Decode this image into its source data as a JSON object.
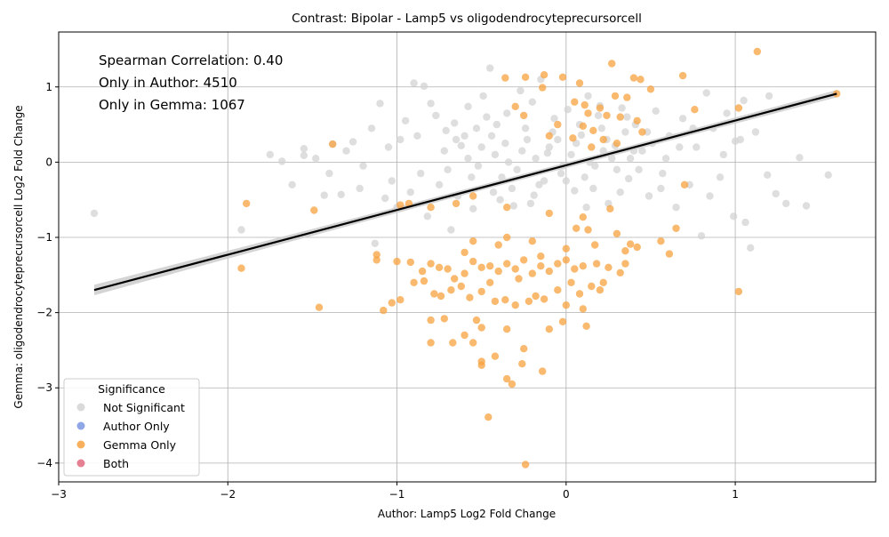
{
  "chart_data": {
    "type": "scatter",
    "title": "Contrast: Bipolar - Lamp5 vs oligodendrocyteprecursorcell",
    "xlabel": "Author: Lamp5 Log2 Fold Change",
    "ylabel": "Gemma: oligodendrocyteprecursorcell Log2 Fold Change",
    "xlim": [
      -3.0,
      1.83
    ],
    "ylim": [
      -4.25,
      1.73
    ],
    "xticks": [
      -3,
      -2,
      -1,
      0,
      1
    ],
    "xtick_labels": [
      "−3",
      "−2",
      "−1",
      "0",
      "1"
    ],
    "yticks": [
      -4,
      -3,
      -2,
      -1,
      0,
      1
    ],
    "ytick_labels": [
      "−4",
      "−3",
      "−2",
      "−1",
      "0",
      "1"
    ],
    "grid": true,
    "annotations": [
      "Spearman Correlation: 0.40",
      "Only in Author: 4510",
      "Only in Gemma: 1067"
    ],
    "regression_line": {
      "x": [
        -2.79,
        1.6
      ],
      "y": [
        -1.7,
        0.91
      ],
      "color": "#000000"
    },
    "confidence_band_color": "#cccccc",
    "legend": {
      "title": "Significance",
      "placement": "lower-left",
      "entries": [
        {
          "label": "Not Significant",
          "color": "#d3d3d3"
        },
        {
          "label": "Author Only",
          "color": "#7b96e3"
        },
        {
          "label": "Gemma Only",
          "color": "#f7a23f"
        },
        {
          "label": "Both",
          "color": "#e06b80"
        }
      ]
    },
    "series": [
      {
        "name": "Not Significant",
        "color": "#d3d3d3",
        "points": [
          [
            -2.79,
            -0.68
          ],
          [
            -1.68,
            0.01
          ],
          [
            -1.55,
            0.18
          ],
          [
            -1.55,
            0.09
          ],
          [
            -1.43,
            -0.44
          ],
          [
            -1.38,
            0.24
          ],
          [
            -1.33,
            -0.43
          ],
          [
            -1.26,
            0.27
          ],
          [
            -1.22,
            -0.35
          ],
          [
            -1.13,
            -1.08
          ],
          [
            -1.1,
            0.78
          ],
          [
            -1.07,
            -0.48
          ],
          [
            -1.03,
            -0.25
          ],
          [
            -0.98,
            0.3
          ],
          [
            -0.9,
            1.05
          ],
          [
            -0.84,
            1.01
          ],
          [
            -0.82,
            -0.72
          ],
          [
            -0.77,
            0.62
          ],
          [
            -0.71,
            0.42
          ],
          [
            -0.68,
            -0.9
          ],
          [
            -0.62,
            0.22
          ],
          [
            -0.58,
            0.74
          ],
          [
            -0.55,
            -0.62
          ],
          [
            -0.49,
            0.88
          ],
          [
            -0.45,
            1.25
          ],
          [
            -0.41,
            0.5
          ],
          [
            -0.38,
            -0.2
          ],
          [
            -0.35,
            0.65
          ],
          [
            -0.31,
            -0.58
          ],
          [
            -0.27,
            0.95
          ],
          [
            -0.23,
            0.3
          ],
          [
            -0.19,
            -0.44
          ],
          [
            -0.15,
            1.1
          ],
          [
            -0.11,
            0.12
          ],
          [
            -0.07,
            0.58
          ],
          [
            -0.03,
            -0.15
          ],
          [
            0.01,
            0.7
          ],
          [
            0.05,
            -0.38
          ],
          [
            0.09,
            0.36
          ],
          [
            0.13,
            0.88
          ],
          [
            0.17,
            -0.05
          ],
          [
            0.21,
            0.45
          ],
          [
            0.25,
            -0.55
          ],
          [
            0.29,
            0.22
          ],
          [
            0.33,
            0.72
          ],
          [
            0.37,
            -0.22
          ],
          [
            0.41,
            0.5
          ],
          [
            0.45,
            0.15
          ],
          [
            0.49,
            -0.45
          ],
          [
            0.53,
            0.68
          ],
          [
            0.57,
            -0.15
          ],
          [
            0.61,
            0.35
          ],
          [
            0.65,
            -0.6
          ],
          [
            0.69,
            0.58
          ],
          [
            0.73,
            -0.3
          ],
          [
            0.77,
            0.2
          ],
          [
            0.8,
            -0.98
          ],
          [
            0.83,
            0.92
          ],
          [
            0.87,
            0.45
          ],
          [
            0.91,
            -0.2
          ],
          [
            0.95,
            0.65
          ],
          [
            0.99,
            -0.72
          ],
          [
            1.03,
            0.3
          ],
          [
            1.05,
            0.82
          ],
          [
            1.06,
            -0.8
          ],
          [
            1.09,
            -1.14
          ],
          [
            1.12,
            0.4
          ],
          [
            1.19,
            -0.17
          ],
          [
            1.2,
            0.88
          ],
          [
            1.24,
            -0.42
          ],
          [
            1.3,
            -0.55
          ],
          [
            1.38,
            0.06
          ],
          [
            1.42,
            -0.58
          ],
          [
            1.55,
            -0.17
          ],
          [
            -1.92,
            -0.9
          ],
          [
            -1.75,
            0.1
          ],
          [
            -1.62,
            -0.3
          ],
          [
            -1.48,
            0.05
          ],
          [
            -1.4,
            -0.15
          ],
          [
            -1.3,
            0.15
          ],
          [
            -1.2,
            -0.05
          ],
          [
            -1.15,
            0.45
          ],
          [
            -1.05,
            0.2
          ],
          [
            -1.0,
            -0.6
          ],
          [
            -0.95,
            0.55
          ],
          [
            -0.92,
            -0.4
          ],
          [
            -0.88,
            0.35
          ],
          [
            -0.86,
            -0.15
          ],
          [
            -0.8,
            0.78
          ],
          [
            -0.75,
            -0.3
          ],
          [
            -0.72,
            0.15
          ],
          [
            -0.66,
            0.52
          ],
          [
            -0.64,
            -0.45
          ],
          [
            -0.6,
            0.35
          ],
          [
            -0.52,
            -0.05
          ],
          [
            -0.47,
            0.6
          ],
          [
            -0.43,
            -0.4
          ],
          [
            -0.36,
            0.25
          ],
          [
            -0.29,
            -0.1
          ],
          [
            -0.2,
            0.8
          ],
          [
            -0.13,
            -0.25
          ],
          [
            -0.05,
            0.3
          ],
          [
            0.03,
            0.1
          ],
          [
            0.11,
            -0.2
          ],
          [
            0.19,
            0.62
          ],
          [
            0.27,
            0.05
          ],
          [
            0.35,
            0.4
          ],
          [
            0.43,
            -0.1
          ],
          [
            0.51,
            0.25
          ],
          [
            0.59,
            0.05
          ],
          [
            0.67,
            0.2
          ],
          [
            0.75,
            0.45
          ],
          [
            0.85,
            -0.45
          ],
          [
            0.93,
            0.1
          ],
          [
            1.0,
            0.28
          ],
          [
            -0.58,
            0.05
          ],
          [
            -0.5,
            0.2
          ],
          [
            -0.42,
            0.1
          ],
          [
            -0.34,
            0.0
          ],
          [
            -0.26,
            0.15
          ],
          [
            -0.18,
            0.05
          ],
          [
            -0.1,
            0.2
          ],
          [
            -0.02,
            -0.05
          ],
          [
            0.06,
            0.25
          ],
          [
            0.14,
            0.0
          ],
          [
            0.22,
            0.15
          ],
          [
            0.3,
            -0.1
          ],
          [
            0.38,
            0.05
          ],
          [
            -0.56,
            -0.2
          ],
          [
            -0.44,
            0.35
          ],
          [
            -0.32,
            -0.35
          ],
          [
            -0.24,
            0.45
          ],
          [
            -0.16,
            -0.3
          ],
          [
            -0.08,
            0.4
          ],
          [
            0.0,
            -0.25
          ],
          [
            0.08,
            0.5
          ],
          [
            0.16,
            -0.35
          ],
          [
            0.24,
            0.3
          ],
          [
            0.32,
            -0.4
          ],
          [
            0.4,
            0.15
          ],
          [
            -0.7,
            -0.1
          ],
          [
            -0.65,
            0.3
          ],
          [
            -0.53,
            0.45
          ],
          [
            -0.39,
            -0.5
          ],
          [
            -0.21,
            -0.55
          ],
          [
            0.12,
            -0.6
          ],
          [
            0.2,
            0.75
          ],
          [
            0.36,
            0.6
          ],
          [
            0.48,
            0.4
          ],
          [
            0.56,
            -0.35
          ]
        ]
      },
      {
        "name": "Gemma Only",
        "color": "#f7a23f",
        "points": [
          [
            1.13,
            1.47
          ],
          [
            0.27,
            1.31
          ],
          [
            1.6,
            0.91
          ],
          [
            0.69,
            1.15
          ],
          [
            0.4,
            1.12
          ],
          [
            0.44,
            1.1
          ],
          [
            -0.36,
            1.12
          ],
          [
            -0.24,
            1.13
          ],
          [
            -0.13,
            1.16
          ],
          [
            -0.02,
            1.13
          ],
          [
            0.08,
            1.05
          ],
          [
            -0.14,
            0.99
          ],
          [
            0.5,
            0.97
          ],
          [
            0.29,
            0.88
          ],
          [
            0.36,
            0.86
          ],
          [
            0.05,
            0.8
          ],
          [
            -0.3,
            0.74
          ],
          [
            0.11,
            0.76
          ],
          [
            0.2,
            0.72
          ],
          [
            0.76,
            0.7
          ],
          [
            1.02,
            0.72
          ],
          [
            -0.25,
            0.62
          ],
          [
            0.13,
            0.65
          ],
          [
            0.24,
            0.62
          ],
          [
            0.32,
            0.6
          ],
          [
            0.42,
            0.55
          ],
          [
            -0.05,
            0.5
          ],
          [
            0.1,
            0.48
          ],
          [
            0.16,
            0.42
          ],
          [
            0.45,
            0.4
          ],
          [
            0.22,
            0.3
          ],
          [
            0.04,
            0.32
          ],
          [
            0.3,
            0.25
          ],
          [
            -0.1,
            0.35
          ],
          [
            0.15,
            0.2
          ],
          [
            -1.38,
            0.24
          ],
          [
            -1.89,
            -0.55
          ],
          [
            -1.49,
            -0.64
          ],
          [
            -0.98,
            -0.57
          ],
          [
            -0.93,
            -0.55
          ],
          [
            -0.8,
            -0.6
          ],
          [
            -0.65,
            -0.55
          ],
          [
            -0.55,
            -0.45
          ],
          [
            -0.35,
            -0.6
          ],
          [
            -0.1,
            -0.68
          ],
          [
            0.1,
            -0.73
          ],
          [
            0.26,
            -0.62
          ],
          [
            0.06,
            -0.88
          ],
          [
            0.13,
            -0.9
          ],
          [
            0.3,
            -0.95
          ],
          [
            0.65,
            -0.88
          ],
          [
            0.56,
            -1.05
          ],
          [
            0.38,
            -1.09
          ],
          [
            0.35,
            -1.18
          ],
          [
            0.42,
            -1.13
          ],
          [
            -1.12,
            -1.23
          ],
          [
            -1.12,
            -1.3
          ],
          [
            -1.0,
            -1.32
          ],
          [
            -0.92,
            -1.33
          ],
          [
            -0.85,
            -1.45
          ],
          [
            -0.8,
            -1.35
          ],
          [
            -0.75,
            -1.4
          ],
          [
            -0.7,
            -1.42
          ],
          [
            -0.66,
            -1.55
          ],
          [
            -0.6,
            -1.48
          ],
          [
            -0.55,
            -1.32
          ],
          [
            -0.5,
            -1.4
          ],
          [
            -0.45,
            -1.38
          ],
          [
            -0.4,
            -1.45
          ],
          [
            -0.35,
            -1.35
          ],
          [
            -0.3,
            -1.42
          ],
          [
            -0.25,
            -1.3
          ],
          [
            -0.2,
            -1.48
          ],
          [
            -0.15,
            -1.38
          ],
          [
            -0.1,
            -1.45
          ],
          [
            -0.05,
            -1.35
          ],
          [
            0.0,
            -1.3
          ],
          [
            0.05,
            -1.42
          ],
          [
            0.1,
            -1.38
          ],
          [
            0.18,
            -1.35
          ],
          [
            0.22,
            -1.6
          ],
          [
            0.35,
            -1.35
          ],
          [
            0.32,
            -1.47
          ],
          [
            0.61,
            -1.22
          ],
          [
            -1.92,
            -1.41
          ],
          [
            -1.46,
            -1.93
          ],
          [
            -1.08,
            -1.97
          ],
          [
            -1.03,
            -1.87
          ],
          [
            -0.98,
            -1.83
          ],
          [
            -0.9,
            -1.6
          ],
          [
            -0.84,
            -1.58
          ],
          [
            -0.78,
            -1.75
          ],
          [
            -0.74,
            -1.78
          ],
          [
            -0.68,
            -1.7
          ],
          [
            -0.62,
            -1.65
          ],
          [
            -0.57,
            -1.8
          ],
          [
            -0.5,
            -1.72
          ],
          [
            -0.42,
            -1.85
          ],
          [
            -0.36,
            -1.83
          ],
          [
            -0.3,
            -1.9
          ],
          [
            -0.22,
            -1.85
          ],
          [
            -0.18,
            -1.78
          ],
          [
            -0.13,
            -1.82
          ],
          [
            -0.05,
            -1.7
          ],
          [
            0.0,
            -1.9
          ],
          [
            0.08,
            -1.75
          ],
          [
            0.1,
            -1.95
          ],
          [
            0.15,
            -1.65
          ],
          [
            0.2,
            -1.7
          ],
          [
            -0.8,
            -2.1
          ],
          [
            -0.72,
            -2.08
          ],
          [
            -0.67,
            -2.4
          ],
          [
            -0.6,
            -2.3
          ],
          [
            -0.55,
            -2.4
          ],
          [
            -0.53,
            -2.1
          ],
          [
            -0.5,
            -2.2
          ],
          [
            -0.35,
            -2.22
          ],
          [
            -0.02,
            -2.12
          ],
          [
            0.12,
            -2.18
          ],
          [
            -0.1,
            -2.22
          ],
          [
            -0.8,
            -2.4
          ],
          [
            -0.5,
            -2.65
          ],
          [
            -0.5,
            -2.7
          ],
          [
            -0.42,
            -2.58
          ],
          [
            -0.25,
            -2.48
          ],
          [
            -0.26,
            -2.68
          ],
          [
            -0.14,
            -2.78
          ],
          [
            -0.35,
            -2.88
          ],
          [
            -0.32,
            -2.95
          ],
          [
            -0.46,
            -3.39
          ],
          [
            -0.24,
            -4.02
          ],
          [
            1.02,
            -1.72
          ],
          [
            0.7,
            -0.3
          ],
          [
            -0.4,
            -1.1
          ],
          [
            -0.2,
            -1.05
          ],
          [
            0.0,
            -1.15
          ],
          [
            -0.6,
            -1.2
          ],
          [
            0.25,
            -1.4
          ],
          [
            -0.28,
            -1.55
          ],
          [
            -0.45,
            -1.6
          ],
          [
            0.03,
            -1.6
          ],
          [
            -0.15,
            -1.25
          ],
          [
            -0.35,
            -1.0
          ],
          [
            0.17,
            -1.1
          ],
          [
            -0.55,
            -1.05
          ]
        ]
      },
      {
        "name": "Author Only",
        "color": "#7b96e3",
        "points": []
      },
      {
        "name": "Both",
        "color": "#e06b80",
        "points": []
      }
    ]
  }
}
